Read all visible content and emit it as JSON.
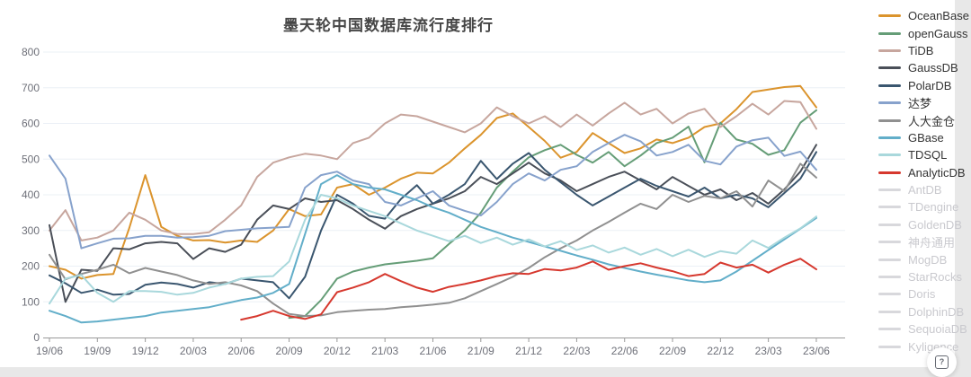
{
  "chart_data": {
    "type": "line",
    "title": "墨天轮中国数据库流行度排行",
    "xlabel": "",
    "ylabel": "",
    "ylim": [
      0,
      800
    ],
    "y_tick_labels": [
      "0",
      "100",
      "200",
      "300",
      "400",
      "500",
      "600",
      "700",
      "800"
    ],
    "grid": "horizontal",
    "legend_position": "right",
    "x_tick_labels": [
      "19/06",
      "19/09",
      "19/12",
      "20/03",
      "20/06",
      "20/09",
      "20/12",
      "21/03",
      "21/06",
      "21/09",
      "21/12",
      "22/03",
      "22/06",
      "22/09",
      "22/12",
      "23/03",
      "23/06"
    ],
    "x_is_monthly": true,
    "months_per_tick": 3,
    "point_count": 49,
    "series": [
      {
        "name": "OceanBase",
        "color": "#db942d",
        "values": [
          200,
          190,
          165,
          175,
          178,
          307,
          455,
          310,
          285,
          272,
          273,
          266,
          272,
          268,
          300,
          360,
          340,
          345,
          420,
          430,
          400,
          420,
          445,
          462,
          460,
          490,
          530,
          568,
          615,
          628,
          590,
          551,
          504,
          520,
          573,
          545,
          517,
          530,
          555,
          545,
          560,
          590,
          600,
          640,
          688,
          695,
          702,
          705,
          645
        ]
      },
      {
        "name": "openGauss",
        "color": "#659d77",
        "values": [
          null,
          null,
          null,
          null,
          null,
          null,
          null,
          null,
          null,
          null,
          null,
          null,
          null,
          null,
          null,
          55,
          60,
          105,
          165,
          185,
          196,
          205,
          210,
          215,
          222,
          262,
          300,
          350,
          420,
          465,
          505,
          525,
          540,
          512,
          490,
          520,
          480,
          510,
          545,
          560,
          591,
          491,
          602,
          555,
          543,
          512,
          525,
          602,
          637
        ]
      },
      {
        "name": "TiDB",
        "color": "#c7a69e",
        "values": [
          300,
          357,
          272,
          280,
          300,
          350,
          330,
          300,
          290,
          290,
          295,
          330,
          370,
          450,
          490,
          505,
          515,
          510,
          500,
          545,
          560,
          600,
          625,
          620,
          605,
          590,
          575,
          600,
          645,
          620,
          600,
          620,
          590,
          625,
          594,
          628,
          658,
          625,
          641,
          600,
          628,
          641,
          590,
          620,
          655,
          625,
          663,
          660,
          585
        ]
      },
      {
        "name": "GaussDB",
        "color": "#4a4f58",
        "values": [
          315,
          100,
          190,
          187,
          250,
          247,
          264,
          268,
          264,
          220,
          250,
          240,
          260,
          330,
          370,
          360,
          390,
          380,
          385,
          360,
          330,
          305,
          340,
          360,
          375,
          390,
          410,
          450,
          430,
          460,
          490,
          460,
          440,
          410,
          430,
          450,
          465,
          440,
          415,
          450,
          425,
          400,
          415,
          385,
          405,
          375,
          415,
          465,
          540
        ]
      },
      {
        "name": "PolarDB",
        "color": "#3a566f",
        "values": [
          174,
          152,
          125,
          134,
          120,
          122,
          148,
          154,
          150,
          140,
          155,
          150,
          165,
          160,
          155,
          110,
          170,
          300,
          400,
          375,
          341,
          333,
          388,
          427,
          375,
          400,
          430,
          495,
          444,
          487,
          517,
          470,
          435,
          400,
          370,
          395,
          420,
          445,
          425,
          410,
          395,
          420,
          390,
          400,
          390,
          365,
          405,
          445,
          520
        ]
      },
      {
        "name": "达梦",
        "color": "#87a2cc",
        "values": [
          510,
          445,
          250,
          264,
          277,
          278,
          285,
          285,
          280,
          281,
          285,
          298,
          302,
          306,
          308,
          310,
          420,
          455,
          465,
          440,
          430,
          380,
          370,
          390,
          410,
          370,
          355,
          342,
          380,
          430,
          460,
          440,
          470,
          480,
          520,
          545,
          568,
          550,
          510,
          520,
          540,
          495,
          485,
          535,
          553,
          560,
          509,
          521,
          470
        ]
      },
      {
        "name": "人大金仓",
        "color": "#909090",
        "values": [
          232,
          163,
          178,
          190,
          204,
          180,
          195,
          185,
          175,
          160,
          150,
          155,
          146,
          130,
          95,
          66,
          60,
          62,
          71,
          75,
          78,
          80,
          85,
          88,
          92,
          97,
          110,
          130,
          150,
          170,
          195,
          225,
          250,
          272,
          300,
          324,
          350,
          375,
          360,
          400,
          380,
          397,
          390,
          410,
          367,
          440,
          410,
          487,
          448
        ]
      },
      {
        "name": "GBase",
        "color": "#62aec9",
        "values": [
          75,
          60,
          42,
          45,
          50,
          55,
          60,
          70,
          75,
          80,
          85,
          95,
          105,
          112,
          125,
          150,
          290,
          430,
          455,
          430,
          420,
          415,
          400,
          385,
          365,
          350,
          330,
          310,
          295,
          280,
          268,
          255,
          243,
          230,
          218,
          205,
          195,
          185,
          176,
          168,
          160,
          155,
          160,
          185,
          215,
          245,
          275,
          305,
          335
        ]
      },
      {
        "name": "TDSQL",
        "color": "#a9d8dc",
        "values": [
          95,
          165,
          175,
          125,
          100,
          130,
          130,
          128,
          120,
          125,
          140,
          150,
          165,
          170,
          172,
          213,
          330,
          400,
          390,
          370,
          355,
          340,
          320,
          300,
          285,
          270,
          285,
          265,
          280,
          260,
          275,
          255,
          270,
          245,
          258,
          238,
          252,
          232,
          248,
          228,
          246,
          226,
          242,
          235,
          272,
          251,
          280,
          306,
          339
        ]
      },
      {
        "name": "AnalyticDB",
        "color": "#d6382e",
        "values": [
          null,
          null,
          null,
          null,
          null,
          null,
          null,
          null,
          null,
          null,
          null,
          null,
          50,
          60,
          75,
          60,
          52,
          65,
          127,
          140,
          155,
          178,
          158,
          140,
          128,
          142,
          150,
          160,
          172,
          180,
          178,
          192,
          188,
          196,
          213,
          190,
          200,
          208,
          196,
          186,
          172,
          178,
          210,
          196,
          204,
          182,
          204,
          221,
          191
        ]
      }
    ],
    "disabled_series": [
      "AntDB",
      "TDengine",
      "GoldenDB",
      "神舟通用",
      "MogDB",
      "StarRocks",
      "Doris",
      "DolphinDB",
      "SequoiaDB",
      "Kyligence"
    ]
  },
  "style": {
    "grid_color": "#ebf0f6",
    "axis_color": "#999999",
    "tick_label_color": "#6e7079",
    "disabled_swatch_color": "#d8d8dc"
  },
  "help_button": {
    "icon_label": "?"
  }
}
